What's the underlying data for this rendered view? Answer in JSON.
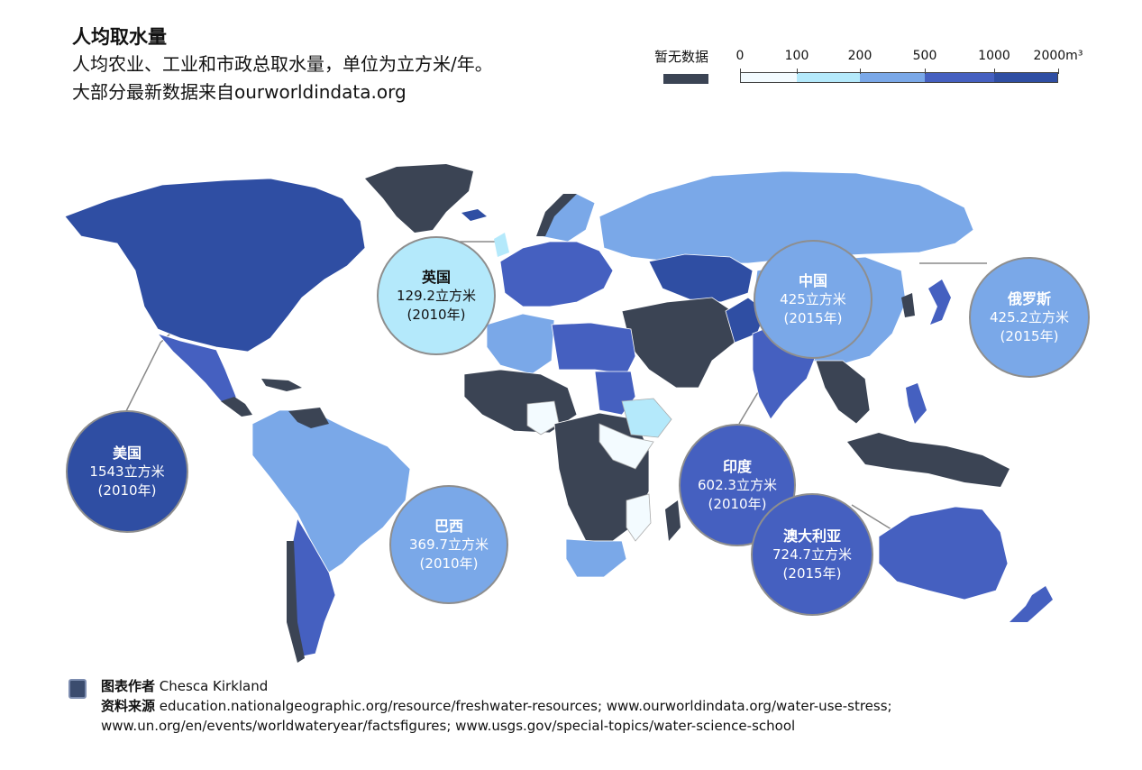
{
  "header": {
    "title": "人均取水量",
    "subtitle_line1": "人均农业、工业和市政总取水量，单位为立方米/年。",
    "subtitle_line2": "大部分最新数据来自ourworldindata.org"
  },
  "legend": {
    "no_data_label": "暂无数据",
    "no_data_color": "#3b4454",
    "ticks": [
      "0",
      "100",
      "200",
      "500",
      "1000",
      "2000m³"
    ],
    "bins": [
      {
        "from": 0,
        "to": 100,
        "color": "#f3fbff"
      },
      {
        "from": 100,
        "to": 200,
        "color": "#b4e9fb"
      },
      {
        "from": 200,
        "to": 500,
        "color": "#7aa8e8"
      },
      {
        "from": 500,
        "to": 1000,
        "color": "#4560c0"
      },
      {
        "from": 1000,
        "to": 2000,
        "color": "#2f4ea3"
      }
    ]
  },
  "chart_data": {
    "type": "choropleth",
    "unit": "m³ per person per year",
    "highlighted": [
      {
        "name": "美国",
        "value": 1543,
        "value_label": "1543立方米",
        "year": "(2010年)"
      },
      {
        "name": "英国",
        "value": 129.2,
        "value_label": "129.2立方米",
        "year": "(2010年)"
      },
      {
        "name": "中国",
        "value": 425,
        "value_label": "425立方米",
        "year": "(2015年)"
      },
      {
        "name": "俄罗斯",
        "value": 425.2,
        "value_label": "425.2立方米",
        "year": "(2015年)"
      },
      {
        "name": "印度",
        "value": 602.3,
        "value_label": "602.3立方米",
        "year": "(2010年)"
      },
      {
        "name": "巴西",
        "value": 369.7,
        "value_label": "369.7立方米",
        "year": "(2010年)"
      },
      {
        "name": "澳大利亚",
        "value": 724.7,
        "value_label": "724.7立方米",
        "year": "(2015年)"
      }
    ]
  },
  "footer": {
    "author_label": "图表作者",
    "author": "Chesca Kirkland",
    "source_label": "资料来源",
    "source_line1": "education.nationalgeographic.org/resource/freshwater-resources; www.ourworldindata.org/water-use-stress;",
    "source_line2": "www.un.org/en/events/worldwateryear/factsfigures; www.usgs.gov/special-topics/water-science-school",
    "swatch_color": "#3b4c6e"
  }
}
